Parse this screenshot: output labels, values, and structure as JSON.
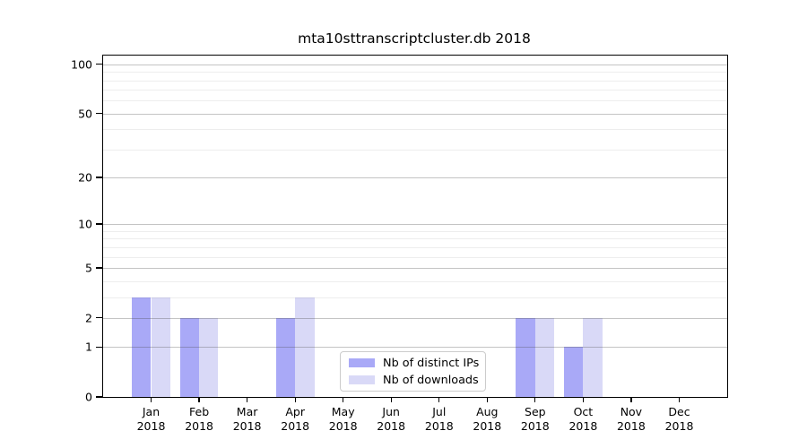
{
  "chart_data": {
    "type": "bar",
    "title": "mta10sttranscriptcluster.db 2018",
    "year_label": "2018",
    "categories": [
      "Jan",
      "Feb",
      "Mar",
      "Apr",
      "May",
      "Jun",
      "Jul",
      "Aug",
      "Sep",
      "Oct",
      "Nov",
      "Dec"
    ],
    "series": [
      {
        "name": "Nb of distinct IPs",
        "color": "#a9a9f7",
        "values": [
          3,
          2,
          0,
          2,
          0,
          0,
          0,
          0,
          2,
          1,
          0,
          0
        ]
      },
      {
        "name": "Nb of downloads",
        "color": "#d9d9f7",
        "values": [
          3,
          2,
          0,
          3,
          0,
          0,
          0,
          0,
          2,
          2,
          0,
          0
        ]
      }
    ],
    "y_axis": {
      "scale": "log1p",
      "ticks": [
        0,
        1,
        2,
        5,
        10,
        20,
        50,
        100
      ],
      "minor_ticks": [
        3,
        4,
        6,
        7,
        8,
        9,
        30,
        40,
        60,
        70,
        80,
        90
      ],
      "ylim": [
        0,
        112
      ],
      "grid": "on"
    },
    "legend": {
      "position": "lower center"
    }
  },
  "colors": {
    "axis": "#000000",
    "major_grid": "rgba(70,70,70,0.32)",
    "minor_grid": "rgba(0,0,0,0.07)",
    "background": "#ffffff"
  }
}
